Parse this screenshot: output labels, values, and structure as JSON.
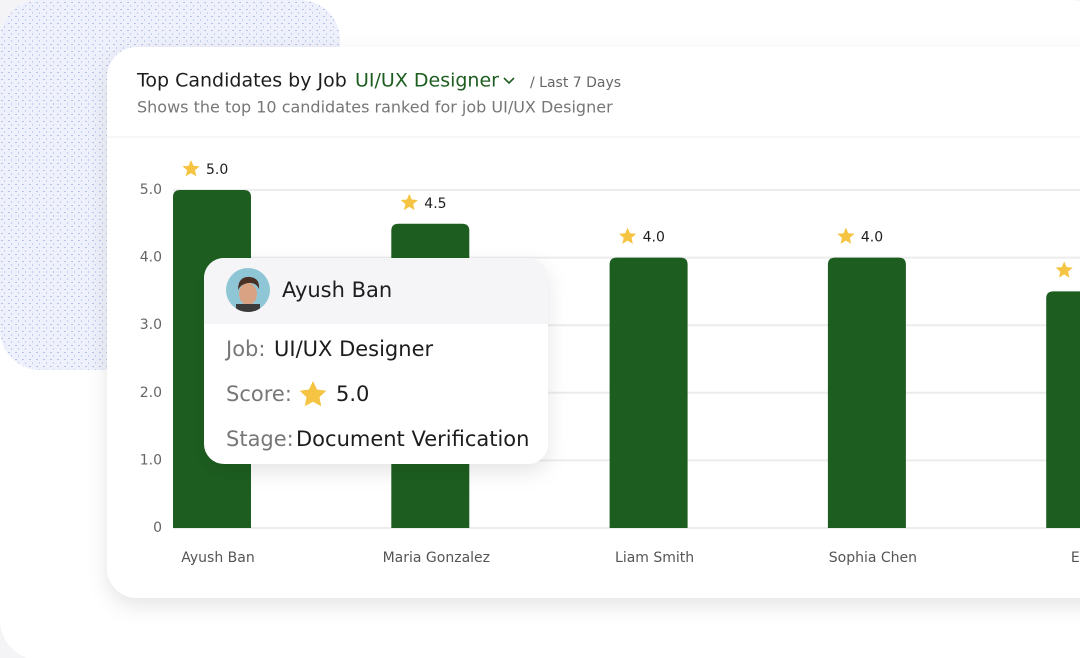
{
  "chart_data": {
    "type": "bar",
    "title": "Top Candidates by Job",
    "job_selector": "UI/UX Designer",
    "period": "/ Last 7 Days",
    "subtitle": "Shows the top 10 candidates ranked for job UI/UX Designer",
    "categories": [
      "Ayush Ban",
      "Maria Gonzalez",
      "Liam Smith",
      "Sophia Chen",
      "Ethan"
    ],
    "values": [
      5.0,
      4.5,
      4.0,
      4.0,
      3.5
    ],
    "value_labels": [
      "5.0",
      "4.5",
      "4.0",
      "4.0",
      null
    ],
    "color": "#1d5e20",
    "ylim": [
      0,
      5
    ],
    "yticks": [
      0,
      {
        "value": 1,
        "label": "1.0"
      },
      {
        "value": 2,
        "label": "2.0"
      },
      {
        "value": 3,
        "label": "3.0"
      },
      {
        "value": 4,
        "label": "4.0"
      },
      {
        "value": 5,
        "label": "5.0"
      }
    ],
    "grid": true,
    "tooltip": {
      "name": "Ayush Ban",
      "job_label": "Job:",
      "job": "UI/UX Designer",
      "score_label": "Score:",
      "score": "5.0",
      "stage_label": "Stage:",
      "stage": "Document Verification"
    }
  }
}
